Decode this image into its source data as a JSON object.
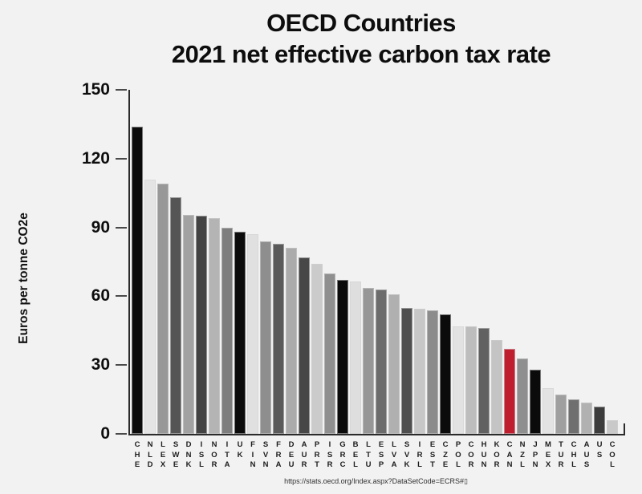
{
  "title": {
    "line1": "OECD Countries",
    "line2": "2021 net effective carbon tax rate"
  },
  "source_text": "https://stats.oecd.org/Index.aspx?DataSetCode=ECRS#▯",
  "accent_color": "#be1e2d",
  "background_color": "#f2f2f2",
  "chart_data": {
    "type": "bar",
    "title": "OECD Countries — 2021 net effective carbon tax rate",
    "xlabel": "",
    "ylabel": "Euros per tonne CO2e",
    "ylim": [
      0,
      150
    ],
    "yticks": [
      0,
      30,
      60,
      90,
      120,
      150
    ],
    "grid": false,
    "legend": false,
    "highlighted_category": "CAN",
    "categories": [
      "CHE",
      "NLD",
      "LEX",
      "SWE",
      "DNK",
      "ISL",
      "NOR",
      "ITA",
      "UK",
      "FIN",
      "SVN",
      "FRA",
      "DEU",
      "AUR",
      "PRT",
      "ISR",
      "GRC",
      "BEL",
      "LTU",
      "ESP",
      "LVA",
      "SVK",
      "IRL",
      "EST",
      "CZE",
      "POL",
      "COR",
      "HUN",
      "KOR",
      "CAN",
      "NZL",
      "JPN",
      "MEX",
      "TUR",
      "CHL",
      "AUS",
      "US",
      "COL"
    ],
    "values": [
      134,
      111,
      109,
      103,
      95.5,
      95,
      94,
      90,
      88,
      87,
      84,
      83,
      81,
      77,
      74,
      70,
      67,
      66.5,
      63.5,
      63,
      61,
      55,
      54.5,
      54,
      52,
      47,
      47,
      46,
      41,
      37,
      33,
      28,
      20,
      17,
      15,
      13.5,
      12,
      6
    ],
    "bar_colors": [
      "#0b0b0b",
      "#e4e4e4",
      "#989898",
      "#555555",
      "#a2a2a2",
      "#434343",
      "#b4b4b4",
      "#7d7d7d",
      "#0b0b0b",
      "#e0e0e0",
      "#8e8e8e",
      "#5a5a5a",
      "#ababab",
      "#474747",
      "#cbcbcb",
      "#8f8f8f",
      "#0b0b0b",
      "#dedede",
      "#979797",
      "#6c6c6c",
      "#b0b0b0",
      "#4e4e4e",
      "#c7c7c7",
      "#8c8c8c",
      "#0b0b0b",
      "#e2e2e2",
      "#bdbdbd",
      "#616161",
      "#c4c4c4",
      "#be1e2d",
      "#8f8f8f",
      "#0b0b0b",
      "#e3e3e3",
      "#9f9f9f",
      "#6f6f6f",
      "#b1b1b1",
      "#3c3c3c",
      "#c9c9c9"
    ]
  }
}
